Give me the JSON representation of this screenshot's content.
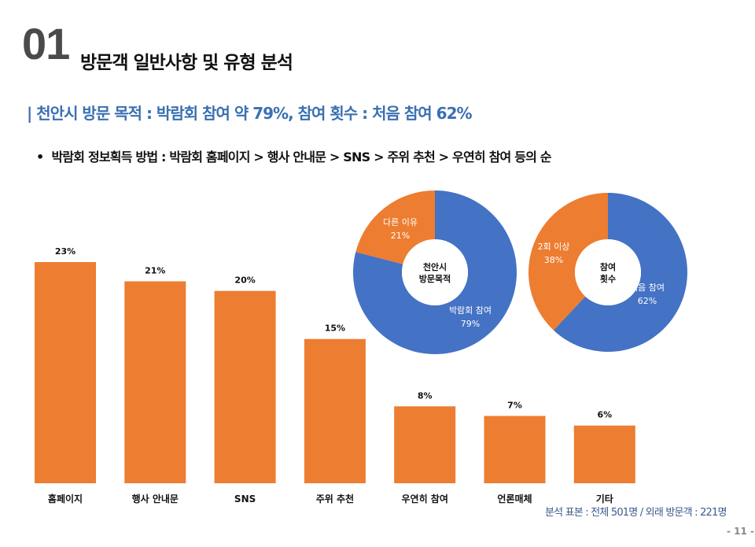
{
  "header": {
    "section_number": "01",
    "section_title": "방문객 일반사항 및 유형 분석",
    "subheading": "| 천안시 방문 목적 : 박람회 참여 약 79%, 참여 횟수 : 처음 참여 62%",
    "bullet": "박람회 정보획득 방법 : 박람회 홈페이지 > 행사 안내문 > SNS > 주위 추천 > 우연히 참여 등의 순"
  },
  "colors": {
    "orange": "#ed7d31",
    "blue": "#4472c4",
    "subhead": "#3a70b2"
  },
  "chart_data": [
    {
      "type": "bar",
      "title": "",
      "categories": [
        "홈페이지",
        "행사 안내문",
        "SNS",
        "주위 추천",
        "우연히 참여",
        "언론매체",
        "기타"
      ],
      "values": [
        23,
        21,
        20,
        15,
        8,
        7,
        6
      ],
      "labels": [
        "23%",
        "21%",
        "20%",
        "15%",
        "8%",
        "7%",
        "6%"
      ],
      "unit": "%",
      "ylim": [
        0,
        23
      ],
      "grid": false
    },
    {
      "type": "pie",
      "center_label": [
        "천안시",
        "방문목적"
      ],
      "slices": [
        {
          "name": "박람회 참여",
          "value": 79,
          "label": "79%"
        },
        {
          "name": "다른 이유",
          "value": 21,
          "label": "21%"
        }
      ]
    },
    {
      "type": "pie",
      "center_label": [
        "참여",
        "횟수"
      ],
      "slices": [
        {
          "name": "처음 참여",
          "value": 62,
          "label": "62%"
        },
        {
          "name": "2회 이상",
          "value": 38,
          "label": "38%"
        }
      ]
    }
  ],
  "footer": {
    "sample": "분석 표본 : 전체 501명 / 외래 방문객 : 221명",
    "page": "- 11 -"
  }
}
